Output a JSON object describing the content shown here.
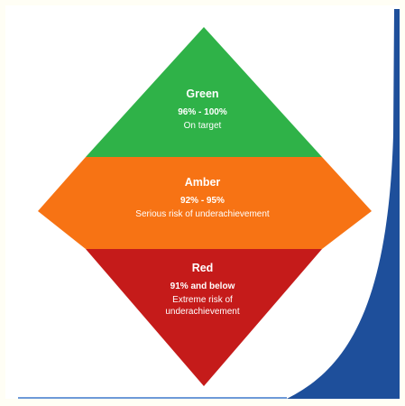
{
  "colors": {
    "page_bg": "#fffef5",
    "green": "#2fb248",
    "amber": "#f77314",
    "red": "#c51b1a",
    "accent_blue": "#1e4f9b",
    "rule_blue": "#6d9ad8"
  },
  "tiers": [
    {
      "name": "Green",
      "range": "96% - 100%",
      "description": "On target"
    },
    {
      "name": "Amber",
      "range": "92% - 95%",
      "description": "Serious risk of underachievement"
    },
    {
      "name": "Red",
      "range": "91% and below",
      "description": "Extreme risk of underachievement"
    }
  ]
}
